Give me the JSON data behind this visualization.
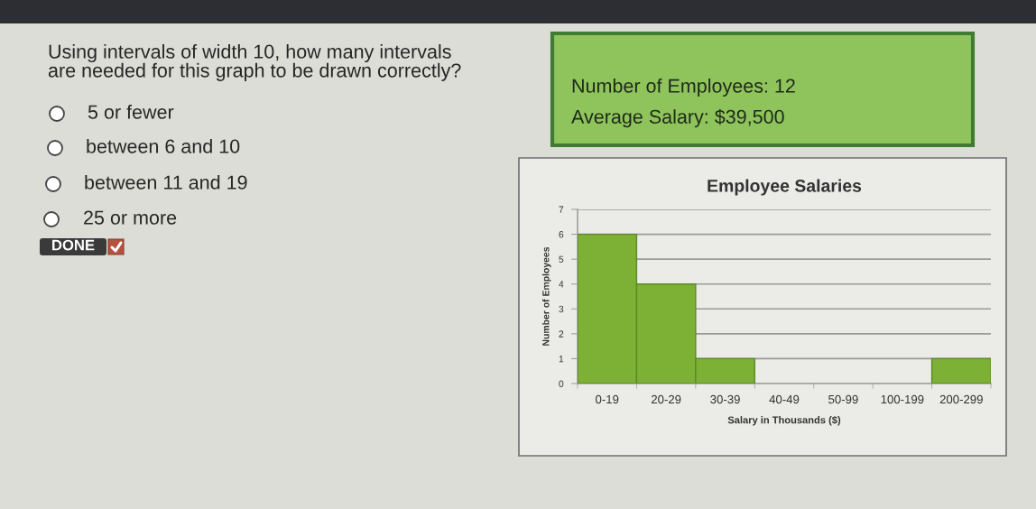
{
  "chart_data": [
    {
      "type": "other",
      "title": "Using intervals of width 10, how many intervals\nare needed for this graph to be drawn correctly?",
      "annotations": [
        "5 or fewer",
        "between 6 and 10",
        "between 11 and 19",
        "25 or more",
        "DONE"
      ]
    },
    {
      "type": "other",
      "annotations": [
        "Number of Employees: 12",
        "Average Salary: $39,500"
      ]
    },
    {
      "type": "bar",
      "title": "Employee Salaries",
      "xlabel": "Salary in Thousands ($)",
      "ylabel": "Number of Employees",
      "categories": [
        "0-19",
        "20-29",
        "30-39",
        "40-49",
        "50-99",
        "100-199",
        "200-299"
      ],
      "values": [
        6,
        4,
        1,
        0,
        0,
        0,
        1
      ],
      "color": "#7cb135",
      "ylim": [
        0,
        7
      ],
      "yticks": [
        0,
        1,
        2,
        3,
        4,
        5,
        6,
        7
      ],
      "grid": "y"
    }
  ]
}
